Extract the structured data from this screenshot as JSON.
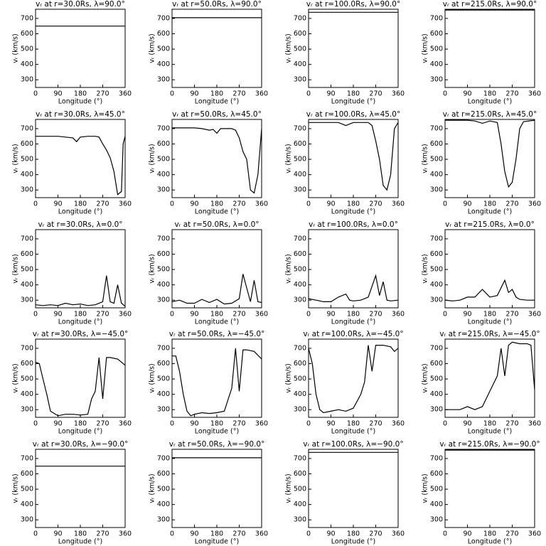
{
  "chart_data": [
    {
      "type": "line",
      "title": "vᵣ at r=30.0Rs, λ=90.0°",
      "xlabel": "Longitude (°)",
      "ylabel": "vᵣ (km/s)",
      "x": [
        0,
        360
      ],
      "values": [
        650,
        650
      ],
      "xlim": [
        0,
        360
      ],
      "xticks": [
        0,
        90,
        180,
        270,
        360
      ],
      "ylim": [
        250,
        760
      ],
      "yticks": [
        300,
        400,
        500,
        600,
        700
      ],
      "color": "#000000"
    },
    {
      "type": "line",
      "title": "vᵣ at r=50.0Rs, λ=90.0°",
      "xlabel": "Longitude (°)",
      "ylabel": "vᵣ (km/s)",
      "x": [
        0,
        360
      ],
      "values": [
        705,
        705
      ],
      "xlim": [
        0,
        360
      ],
      "xticks": [
        0,
        90,
        180,
        270,
        360
      ],
      "ylim": [
        250,
        760
      ],
      "yticks": [
        300,
        400,
        500,
        600,
        700
      ],
      "color": "#000000"
    },
    {
      "type": "line",
      "title": "vᵣ at r=100.0Rs, λ=90.0°",
      "xlabel": "Longitude (°)",
      "ylabel": "vᵣ (km/s)",
      "x": [
        0,
        360
      ],
      "values": [
        740,
        740
      ],
      "xlim": [
        0,
        360
      ],
      "xticks": [
        0,
        90,
        180,
        270,
        360
      ],
      "ylim": [
        250,
        760
      ],
      "yticks": [
        300,
        400,
        500,
        600,
        700
      ],
      "color": "#000000"
    },
    {
      "type": "line",
      "title": "vᵣ at r=215.0Rs, λ=90.0°",
      "xlabel": "Longitude (°)",
      "ylabel": "vᵣ (km/s)",
      "x": [
        0,
        360
      ],
      "values": [
        755,
        755
      ],
      "xlim": [
        0,
        360
      ],
      "xticks": [
        0,
        90,
        180,
        270,
        360
      ],
      "ylim": [
        250,
        760
      ],
      "yticks": [
        300,
        400,
        500,
        600,
        700
      ],
      "color": "#000000"
    },
    {
      "type": "line",
      "title": "vᵣ at r=30.0Rs, λ=45.0°",
      "xlabel": "Longitude (°)",
      "ylabel": "vᵣ (km/s)",
      "x": [
        0,
        30,
        60,
        90,
        120,
        150,
        165,
        180,
        210,
        240,
        255,
        270,
        285,
        300,
        315,
        330,
        345,
        352,
        360
      ],
      "values": [
        650,
        650,
        650,
        650,
        645,
        640,
        615,
        645,
        650,
        650,
        645,
        600,
        560,
        510,
        420,
        270,
        290,
        600,
        650
      ],
      "xlim": [
        0,
        360
      ],
      "xticks": [
        0,
        90,
        180,
        270,
        360
      ],
      "ylim": [
        250,
        760
      ],
      "yticks": [
        300,
        400,
        500,
        600,
        700
      ],
      "color": "#000000"
    },
    {
      "type": "line",
      "title": "vᵣ at r=50.0Rs, λ=45.0°",
      "xlabel": "Longitude (°)",
      "ylabel": "vᵣ (km/s)",
      "x": [
        0,
        30,
        60,
        90,
        120,
        150,
        165,
        180,
        195,
        240,
        255,
        270,
        285,
        300,
        315,
        330,
        345,
        360
      ],
      "values": [
        705,
        705,
        705,
        705,
        700,
        690,
        695,
        670,
        700,
        700,
        690,
        640,
        550,
        500,
        300,
        280,
        400,
        700
      ],
      "xlim": [
        0,
        360
      ],
      "xticks": [
        0,
        90,
        180,
        270,
        360
      ],
      "ylim": [
        250,
        760
      ],
      "yticks": [
        300,
        400,
        500,
        600,
        700
      ],
      "color": "#000000"
    },
    {
      "type": "line",
      "title": "vᵣ at r=100.0Rs, λ=45.0°",
      "xlabel": "Longitude (°)",
      "ylabel": "vᵣ (km/s)",
      "x": [
        0,
        30,
        60,
        90,
        120,
        150,
        180,
        210,
        240,
        255,
        270,
        285,
        300,
        315,
        330,
        345,
        360
      ],
      "values": [
        740,
        740,
        740,
        740,
        740,
        720,
        740,
        740,
        740,
        720,
        620,
        500,
        330,
        300,
        400,
        700,
        740
      ],
      "xlim": [
        0,
        360
      ],
      "xticks": [
        0,
        90,
        180,
        270,
        360
      ],
      "ylim": [
        250,
        760
      ],
      "yticks": [
        300,
        400,
        500,
        600,
        700
      ],
      "color": "#000000"
    },
    {
      "type": "line",
      "title": "vᵣ at r=215.0Rs, λ=45.0°",
      "xlabel": "Longitude (°)",
      "ylabel": "vᵣ (km/s)",
      "x": [
        0,
        30,
        60,
        90,
        120,
        150,
        180,
        210,
        225,
        240,
        255,
        270,
        285,
        300,
        315,
        360
      ],
      "values": [
        755,
        755,
        755,
        755,
        750,
        735,
        750,
        740,
        600,
        420,
        320,
        350,
        500,
        700,
        745,
        755
      ],
      "xlim": [
        0,
        360
      ],
      "xticks": [
        0,
        90,
        180,
        270,
        360
      ],
      "ylim": [
        250,
        760
      ],
      "yticks": [
        300,
        400,
        500,
        600,
        700
      ],
      "color": "#000000"
    },
    {
      "type": "line",
      "title": "vᵣ at r=30.0Rs, λ=0.0°",
      "xlabel": "Longitude (°)",
      "ylabel": "vᵣ (km/s)",
      "x": [
        0,
        30,
        60,
        90,
        120,
        150,
        180,
        210,
        240,
        270,
        285,
        300,
        315,
        330,
        345,
        360
      ],
      "values": [
        270,
        265,
        270,
        265,
        280,
        270,
        275,
        265,
        270,
        290,
        460,
        290,
        280,
        400,
        280,
        260
      ],
      "xlim": [
        0,
        360
      ],
      "xticks": [
        0,
        90,
        180,
        270,
        360
      ],
      "ylim": [
        250,
        760
      ],
      "yticks": [
        300,
        400,
        500,
        600,
        700
      ],
      "color": "#000000"
    },
    {
      "type": "line",
      "title": "vᵣ at r=50.0Rs, λ=0.0°",
      "xlabel": "Longitude (°)",
      "ylabel": "vᵣ (km/s)",
      "x": [
        0,
        30,
        60,
        90,
        120,
        150,
        180,
        210,
        240,
        270,
        285,
        300,
        315,
        330,
        345,
        360
      ],
      "values": [
        290,
        300,
        280,
        280,
        305,
        285,
        305,
        275,
        280,
        310,
        470,
        380,
        290,
        430,
        290,
        285
      ],
      "xlim": [
        0,
        360
      ],
      "xticks": [
        0,
        90,
        180,
        270,
        360
      ],
      "ylim": [
        250,
        760
      ],
      "yticks": [
        300,
        400,
        500,
        600,
        700
      ],
      "color": "#000000"
    },
    {
      "type": "line",
      "title": "vᵣ at r=100.0Rs, λ=0.0°",
      "xlabel": "Longitude (°)",
      "ylabel": "vᵣ (km/s)",
      "x": [
        0,
        30,
        60,
        90,
        120,
        150,
        165,
        180,
        210,
        240,
        270,
        285,
        300,
        315,
        330,
        360
      ],
      "values": [
        310,
        300,
        290,
        290,
        320,
        340,
        300,
        295,
        300,
        320,
        460,
        330,
        420,
        300,
        295,
        300
      ],
      "xlim": [
        0,
        360
      ],
      "xticks": [
        0,
        90,
        180,
        270,
        360
      ],
      "ylim": [
        250,
        760
      ],
      "yticks": [
        300,
        400,
        500,
        600,
        700
      ],
      "color": "#000000"
    },
    {
      "type": "line",
      "title": "vᵣ at r=215.0Rs, λ=0.0°",
      "xlabel": "Longitude (°)",
      "ylabel": "vᵣ (km/s)",
      "x": [
        0,
        30,
        60,
        90,
        120,
        150,
        180,
        210,
        240,
        255,
        270,
        285,
        300,
        330,
        360
      ],
      "values": [
        300,
        295,
        300,
        320,
        320,
        370,
        320,
        330,
        430,
        350,
        370,
        320,
        305,
        300,
        300
      ],
      "xlim": [
        0,
        360
      ],
      "xticks": [
        0,
        90,
        180,
        270,
        360
      ],
      "ylim": [
        250,
        760
      ],
      "yticks": [
        300,
        400,
        500,
        600,
        700
      ],
      "color": "#000000"
    },
    {
      "type": "line",
      "title": "vᵣ at r=30.0Rs, λ=−45.0°",
      "xlabel": "Longitude (°)",
      "ylabel": "vᵣ (km/s)",
      "x": [
        0,
        15,
        30,
        45,
        60,
        90,
        120,
        150,
        180,
        210,
        225,
        240,
        255,
        270,
        285,
        300,
        330,
        360
      ],
      "values": [
        610,
        600,
        500,
        400,
        290,
        260,
        270,
        270,
        265,
        270,
        370,
        420,
        640,
        370,
        640,
        640,
        630,
        590
      ],
      "xlim": [
        0,
        360
      ],
      "xticks": [
        0,
        90,
        180,
        270,
        360
      ],
      "ylim": [
        250,
        760
      ],
      "yticks": [
        300,
        400,
        500,
        600,
        700
      ],
      "color": "#000000"
    },
    {
      "type": "line",
      "title": "vᵣ at r=50.0Rs, λ=−45.0°",
      "xlabel": "Longitude (°)",
      "ylabel": "vᵣ (km/s)",
      "x": [
        0,
        15,
        30,
        45,
        60,
        75,
        90,
        120,
        150,
        180,
        210,
        240,
        255,
        270,
        285,
        300,
        330,
        360
      ],
      "values": [
        650,
        650,
        550,
        400,
        290,
        260,
        270,
        280,
        275,
        280,
        290,
        440,
        700,
        420,
        690,
        690,
        680,
        630
      ],
      "xlim": [
        0,
        360
      ],
      "xticks": [
        0,
        90,
        180,
        270,
        360
      ],
      "ylim": [
        250,
        760
      ],
      "yticks": [
        300,
        400,
        500,
        600,
        700
      ],
      "color": "#000000"
    },
    {
      "type": "line",
      "title": "vᵣ at r=100.0Rs, λ=−45.0°",
      "xlabel": "Longitude (°)",
      "ylabel": "vᵣ (km/s)",
      "x": [
        0,
        15,
        30,
        45,
        60,
        90,
        120,
        150,
        180,
        210,
        225,
        240,
        255,
        270,
        300,
        330,
        345,
        360
      ],
      "values": [
        700,
        600,
        400,
        300,
        280,
        290,
        300,
        290,
        310,
        400,
        480,
        720,
        550,
        720,
        720,
        710,
        680,
        700
      ],
      "xlim": [
        0,
        360
      ],
      "xticks": [
        0,
        90,
        180,
        270,
        360
      ],
      "ylim": [
        250,
        760
      ],
      "yticks": [
        300,
        400,
        500,
        600,
        700
      ],
      "color": "#000000"
    },
    {
      "type": "line",
      "title": "vᵣ at r=215.0Rs, λ=−45.0°",
      "xlabel": "Longitude (°)",
      "ylabel": "vᵣ (km/s)",
      "x": [
        0,
        30,
        60,
        90,
        120,
        150,
        180,
        210,
        225,
        240,
        255,
        270,
        300,
        330,
        345,
        360
      ],
      "values": [
        300,
        300,
        300,
        320,
        300,
        320,
        420,
        520,
        700,
        520,
        720,
        740,
        730,
        730,
        720,
        430
      ],
      "xlim": [
        0,
        360
      ],
      "xticks": [
        0,
        90,
        180,
        270,
        360
      ],
      "ylim": [
        250,
        760
      ],
      "yticks": [
        300,
        400,
        500,
        600,
        700
      ],
      "color": "#000000"
    },
    {
      "type": "line",
      "title": "vᵣ at r=30.0Rs, λ=−90.0°",
      "xlabel": "Longitude (°)",
      "ylabel": "vᵣ (km/s)",
      "x": [
        0,
        360
      ],
      "values": [
        650,
        650
      ],
      "xlim": [
        0,
        360
      ],
      "xticks": [
        0,
        90,
        180,
        270,
        360
      ],
      "ylim": [
        250,
        760
      ],
      "yticks": [
        300,
        400,
        500,
        600,
        700
      ],
      "color": "#000000"
    },
    {
      "type": "line",
      "title": "vᵣ at r=50.0Rs, λ=−90.0°",
      "xlabel": "Longitude (°)",
      "ylabel": "vᵣ (km/s)",
      "x": [
        0,
        360
      ],
      "values": [
        705,
        705
      ],
      "xlim": [
        0,
        360
      ],
      "xticks": [
        0,
        90,
        180,
        270,
        360
      ],
      "ylim": [
        250,
        760
      ],
      "yticks": [
        300,
        400,
        500,
        600,
        700
      ],
      "color": "#000000"
    },
    {
      "type": "line",
      "title": "vᵣ at r=100.0Rs, λ=−90.0°",
      "xlabel": "Longitude (°)",
      "ylabel": "vᵣ (km/s)",
      "x": [
        0,
        360
      ],
      "values": [
        740,
        740
      ],
      "xlim": [
        0,
        360
      ],
      "xticks": [
        0,
        90,
        180,
        270,
        360
      ],
      "ylim": [
        250,
        760
      ],
      "yticks": [
        300,
        400,
        500,
        600,
        700
      ],
      "color": "#000000"
    },
    {
      "type": "line",
      "title": "vᵣ at r=215.0Rs, λ=−90.0°",
      "xlabel": "Longitude (°)",
      "ylabel": "vᵣ (km/s)",
      "x": [
        0,
        360
      ],
      "values": [
        755,
        755
      ],
      "xlim": [
        0,
        360
      ],
      "xticks": [
        0,
        90,
        180,
        270,
        360
      ],
      "ylim": [
        250,
        760
      ],
      "yticks": [
        300,
        400,
        500,
        600,
        700
      ],
      "color": "#000000"
    }
  ]
}
